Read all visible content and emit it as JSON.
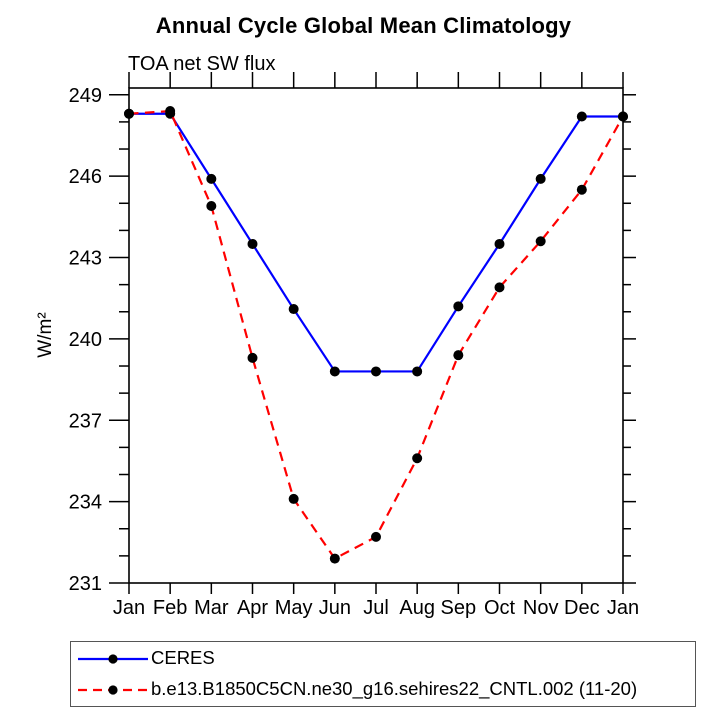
{
  "chart_data": {
    "type": "line",
    "title": "Annual Cycle Global Mean Climatology",
    "subtitle": "TOA net SW flux",
    "ylabel": "W/m²",
    "categories": [
      "Jan",
      "Feb",
      "Mar",
      "Apr",
      "May",
      "Jun",
      "Jul",
      "Aug",
      "Sep",
      "Oct",
      "Nov",
      "Dec",
      "Jan"
    ],
    "ylim": [
      231,
      249
    ],
    "yticks_major": [
      231,
      234,
      237,
      240,
      243,
      246,
      249
    ],
    "y_minor_step": 1,
    "grid": false,
    "legend_position": "bottom",
    "marker": "filled-circle",
    "marker_color": "#000000",
    "axis_color": "#000000",
    "series": [
      {
        "name": "CERES",
        "color": "#0000ff",
        "style": "solid",
        "values": [
          248.3,
          248.3,
          245.9,
          243.5,
          241.1,
          238.8,
          238.8,
          238.8,
          241.2,
          243.5,
          245.9,
          248.2,
          248.2
        ]
      },
      {
        "name": "b.e13.B1850C5CN.ne30_g16.sehires22_CNTL.002 (11-20)",
        "color": "#ff0000",
        "style": "dashed",
        "values": [
          248.3,
          248.4,
          244.9,
          239.3,
          234.1,
          231.9,
          232.7,
          235.6,
          239.4,
          241.9,
          243.6,
          245.5,
          248.2
        ]
      }
    ]
  }
}
